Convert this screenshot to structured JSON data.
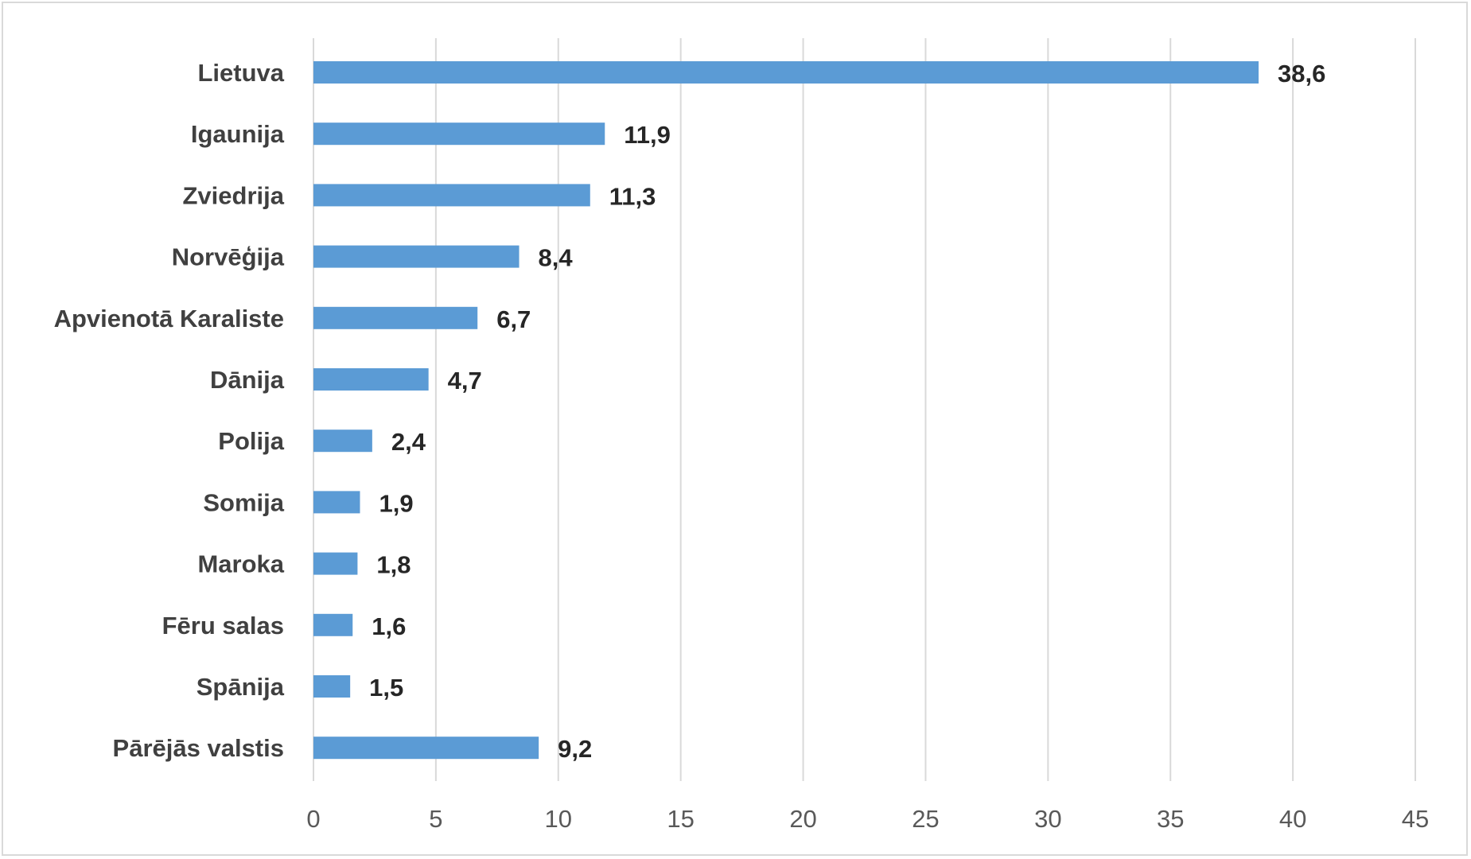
{
  "chart_data": {
    "type": "bar",
    "orientation": "horizontal",
    "title": "",
    "xlabel": "",
    "ylabel": "",
    "xlim": [
      0,
      45
    ],
    "ticks": [
      0,
      5,
      10,
      15,
      20,
      25,
      30,
      35,
      40,
      45
    ],
    "grid": "vertical",
    "legend": "none",
    "bar_color": "#5b9bd5",
    "categories": [
      "Lietuva",
      "Igaunija",
      "Zviedrija",
      "Norvēģija",
      "Apvienotā Karaliste",
      "Dānija",
      "Polija",
      "Somija",
      "Maroka",
      "Fēru salas",
      "Spānija",
      "Pārējās valstis"
    ],
    "values": [
      38.6,
      11.9,
      11.3,
      8.4,
      6.7,
      4.7,
      2.4,
      1.9,
      1.8,
      1.6,
      1.5,
      9.2
    ],
    "value_labels": [
      "38,6",
      "11,9",
      "11,3",
      "8,4",
      "6,7",
      "4,7",
      "2,4",
      "1,9",
      "1,8",
      "1,6",
      "1,5",
      "9,2"
    ]
  }
}
